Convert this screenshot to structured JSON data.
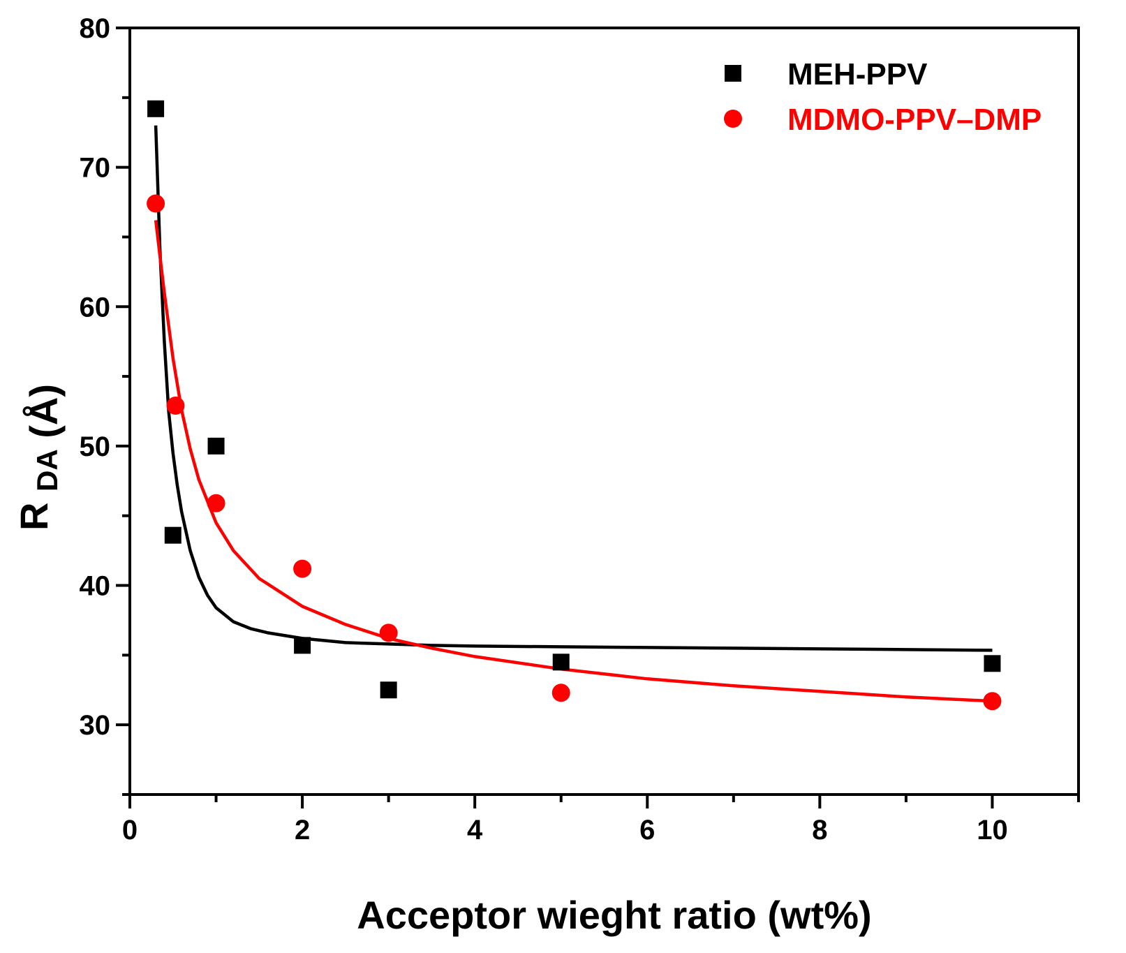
{
  "chart_data": {
    "type": "scatter",
    "xlabel": "Acceptor wieght ratio (wt%)",
    "ylabel": {
      "main": "R",
      "sub": "DA",
      "unit": "(Å)"
    },
    "xlim": [
      0,
      11
    ],
    "ylim": [
      25,
      80
    ],
    "x_major_ticks": [
      0,
      2,
      4,
      6,
      8,
      10
    ],
    "x_tick_labels": [
      "0",
      "2",
      "4",
      "6",
      "8",
      "10"
    ],
    "x_minor_step": 1,
    "y_major_ticks": [
      30,
      40,
      50,
      60,
      70,
      80
    ],
    "y_tick_labels": [
      "30",
      "40",
      "50",
      "60",
      "70",
      "80"
    ],
    "y_minor_step": 5,
    "grid": false,
    "legend_position": "top-right",
    "series": [
      {
        "name": "MEH-PPV",
        "marker": "square",
        "color": "#000000",
        "x": [
          0.3,
          0.5,
          1,
          2,
          3,
          5,
          10
        ],
        "y": [
          74.2,
          43.6,
          50.0,
          35.7,
          32.5,
          34.5,
          34.4
        ],
        "fit": {
          "x": [
            0.3,
            0.35,
            0.4,
            0.45,
            0.5,
            0.55,
            0.6,
            0.7,
            0.8,
            0.9,
            1.0,
            1.2,
            1.4,
            1.6,
            1.8,
            2.0,
            2.5,
            3.0,
            3.5,
            4,
            5,
            6,
            7,
            8,
            9,
            10
          ],
          "y": [
            73.0,
            64.0,
            57.5,
            52.5,
            49.5,
            47.2,
            45.3,
            42.5,
            40.6,
            39.3,
            38.4,
            37.4,
            36.9,
            36.6,
            36.4,
            36.2,
            35.9,
            35.8,
            35.7,
            35.65,
            35.6,
            35.55,
            35.5,
            35.45,
            35.4,
            35.35
          ]
        }
      },
      {
        "name": "MDMO-PPV–DMP",
        "marker": "circle",
        "color": "#ff0000",
        "x": [
          0.3,
          0.53,
          1,
          2,
          3,
          5,
          10
        ],
        "y": [
          67.4,
          52.9,
          45.9,
          41.2,
          36.6,
          32.3,
          31.7
        ],
        "fit": {
          "x": [
            0.3,
            0.35,
            0.4,
            0.5,
            0.6,
            0.7,
            0.8,
            1.0,
            1.2,
            1.5,
            2.0,
            2.5,
            3.0,
            3.5,
            4,
            5,
            6,
            7,
            8,
            9,
            10
          ],
          "y": [
            66.2,
            63.6,
            61.0,
            56.3,
            52.6,
            49.8,
            47.6,
            44.5,
            42.5,
            40.5,
            38.5,
            37.2,
            36.2,
            35.5,
            34.9,
            34.0,
            33.3,
            32.8,
            32.4,
            32.0,
            31.7
          ]
        }
      }
    ]
  }
}
